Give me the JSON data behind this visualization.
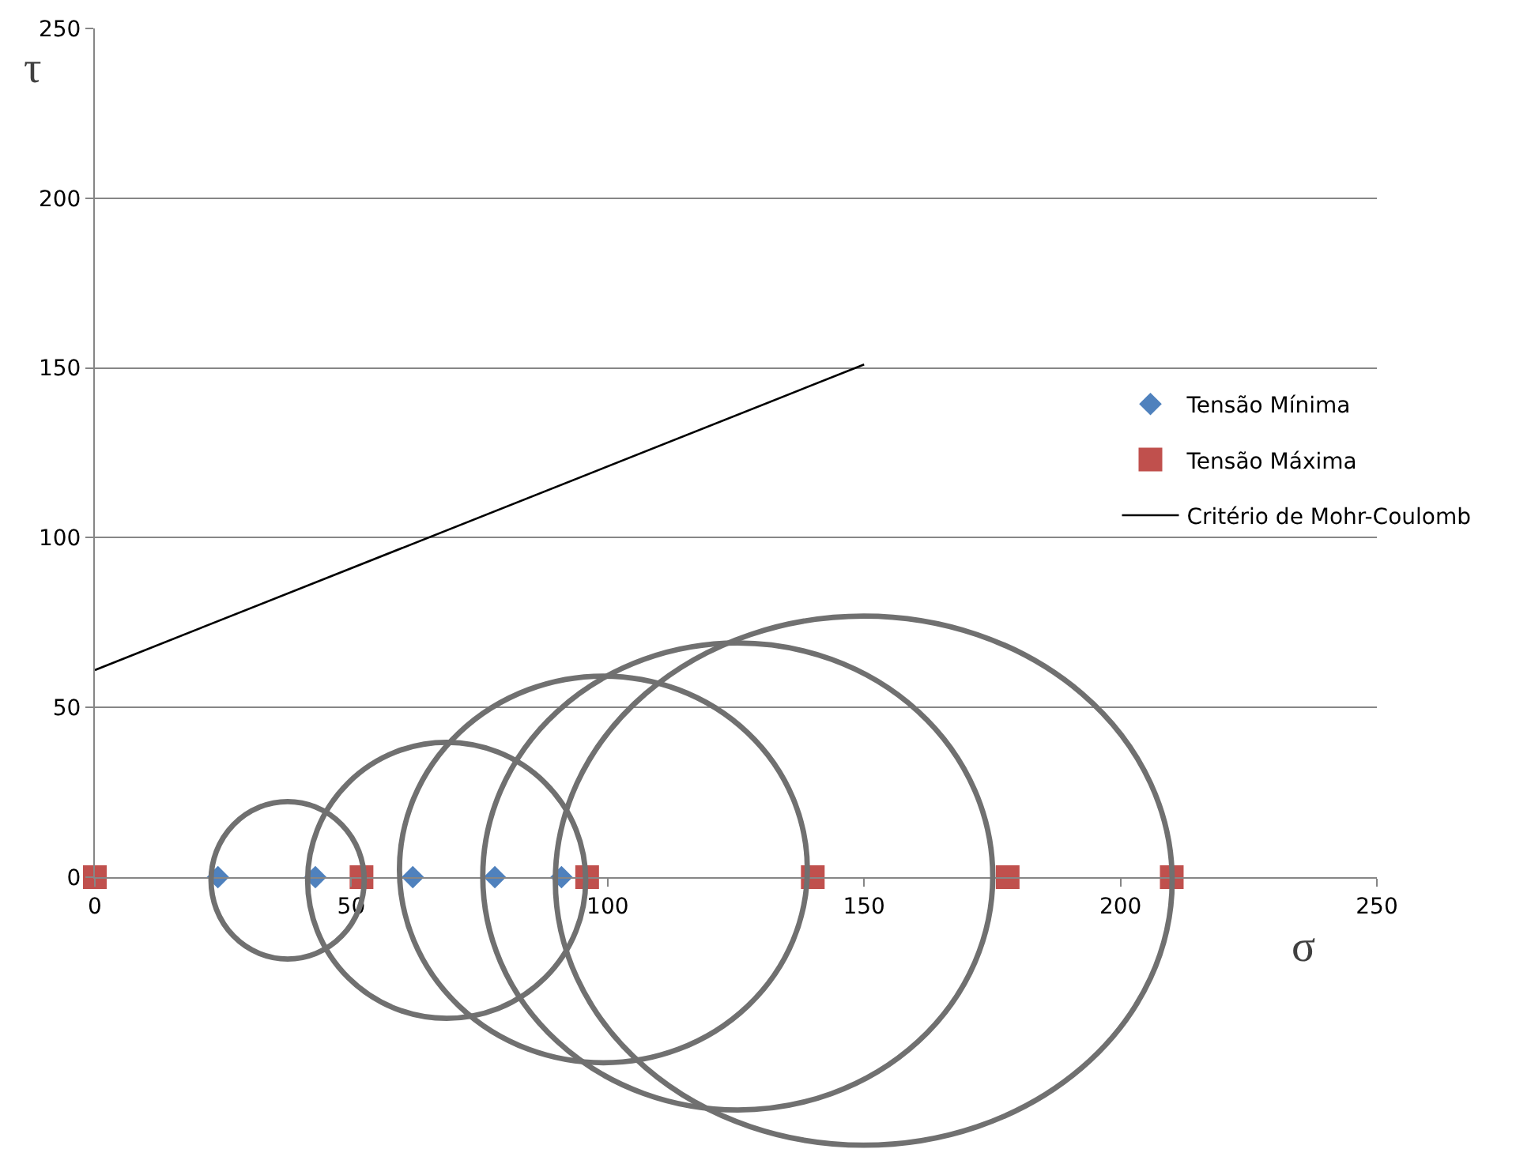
{
  "chart_data": {
    "type": "scatter",
    "xlabel": "σ",
    "ylabel": "τ",
    "xlim": [
      0,
      250
    ],
    "ylim": [
      0,
      250
    ],
    "xticks": [
      0,
      50,
      100,
      150,
      200,
      250
    ],
    "yticks": [
      0,
      50,
      100,
      150,
      200,
      250
    ],
    "grid": "y",
    "legend": "right",
    "series": [
      {
        "name": "Tensão Mínima",
        "marker": "diamond",
        "color": "#4f81bd",
        "x": [
          24,
          43,
          62,
          78,
          91
        ],
        "values": [
          0,
          0,
          0,
          0,
          0
        ]
      },
      {
        "name": "Tensão Máxima",
        "marker": "square",
        "color": "#c0504d",
        "x": [
          0,
          52,
          96,
          140,
          178,
          210
        ],
        "values": [
          0,
          0,
          0,
          0,
          0,
          0
        ]
      },
      {
        "name": "Critério de Mohr-Coulomb",
        "type": "line",
        "color": "#000000",
        "x": [
          0,
          150
        ],
        "values": [
          61,
          151
        ]
      }
    ]
  }
}
